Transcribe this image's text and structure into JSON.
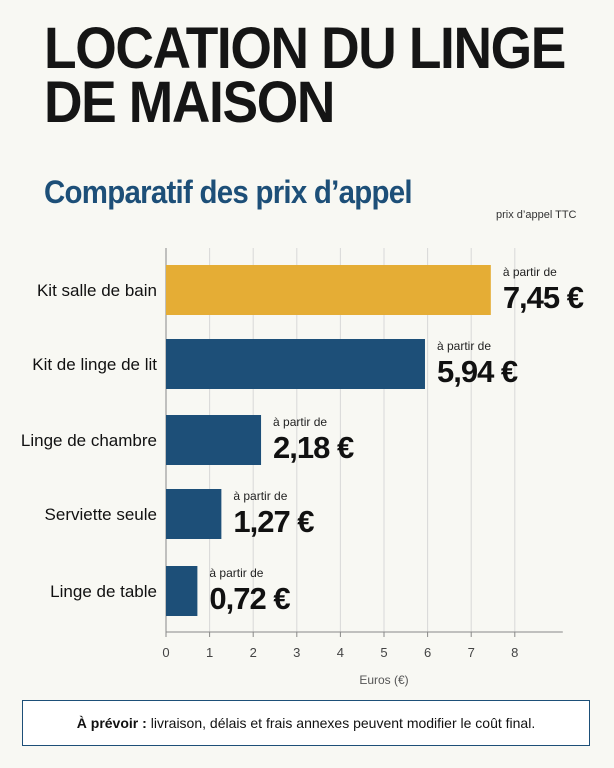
{
  "header": {
    "title_line1": "LOCATION DU LINGE",
    "title_line2": "DE MAISON",
    "subtitle": "Comparatif des prix d’appel",
    "note": "prix d’appel TTC"
  },
  "chart_data": {
    "type": "bar",
    "orientation": "horizontal",
    "categories": [
      "Kit salle de bain",
      "Kit de linge de lit",
      "Linge de chambre",
      "Serviette seule",
      "Linge de table"
    ],
    "values": [
      7.45,
      5.94,
      2.18,
      1.27,
      0.72
    ],
    "value_labels": [
      "7,45 €",
      "5,94 €",
      "2,18 €",
      "1,27 €",
      "0,72 €"
    ],
    "value_prefix": "à partir de",
    "xlabel": "Euros (€)",
    "ylabel": "",
    "xlim": [
      0,
      8
    ],
    "xticks": [
      0,
      1,
      2,
      3,
      4,
      5,
      6,
      7,
      8
    ],
    "grid": "vertical",
    "colors": {
      "highlight": "#e5ad35",
      "default": "#1d4f78",
      "grid": "#d8d8d8",
      "axis": "#888888"
    }
  },
  "footer": {
    "label": "À prévoir :",
    "text": "livraison, délais et frais annexes peuvent modifier le coût final."
  }
}
